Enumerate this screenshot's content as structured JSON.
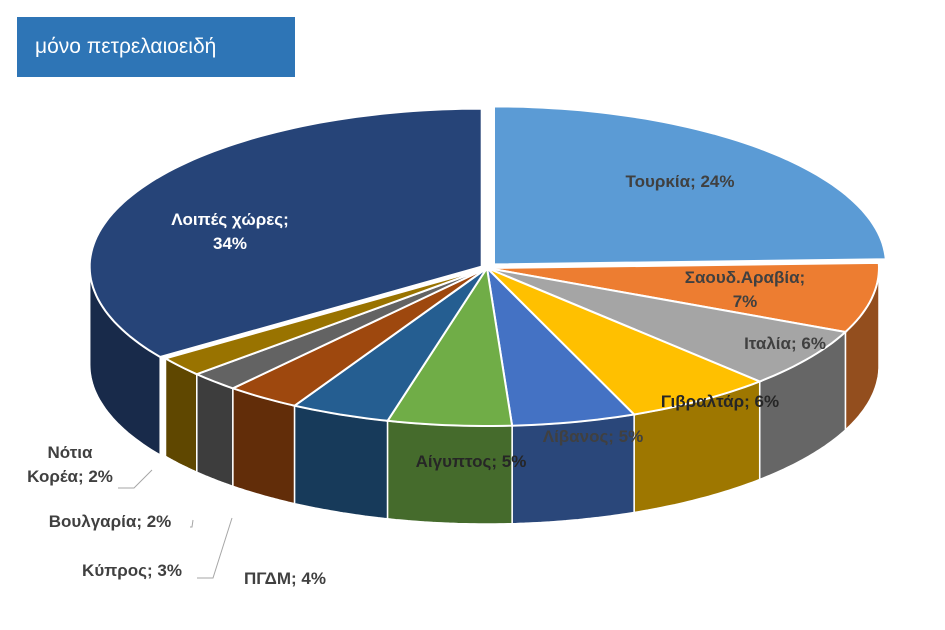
{
  "title": "μόνο πετρελαιοειδή",
  "chart_data": {
    "type": "pie",
    "style": "3d-exploded",
    "legend": "none",
    "slices": [
      {
        "name": "Τουρκία",
        "value": 24,
        "label_lines": [
          "Τουρκία; 24%"
        ],
        "color": "#5b9bd5"
      },
      {
        "name": "Σαουδ.Αραβία",
        "value": 7,
        "label_lines": [
          "Σαουδ.Αραβία;",
          "7%"
        ],
        "color": "#ed7d31"
      },
      {
        "name": "Ιταλία",
        "value": 6,
        "label_lines": [
          "Ιταλία; 6%"
        ],
        "color": "#a5a5a5"
      },
      {
        "name": "Γιβραλτάρ",
        "value": 6,
        "label_lines": [
          "Γιβραλτάρ; 6%"
        ],
        "color": "#ffc000"
      },
      {
        "name": "Λίβανος",
        "value": 5,
        "label_lines": [
          "Λίβανος; 5%"
        ],
        "color": "#4472c4"
      },
      {
        "name": "Αίγυπτος",
        "value": 5,
        "label_lines": [
          "Αίγυπτος; 5%"
        ],
        "color": "#70ad47"
      },
      {
        "name": "ΠΓΔΜ",
        "value": 4,
        "label_lines": [
          "ΠΓΔΜ; 4%"
        ],
        "color": "#255e91"
      },
      {
        "name": "Κύπρος",
        "value": 3,
        "label_lines": [
          "Κύπρος; 3%"
        ],
        "color": "#9e480e"
      },
      {
        "name": "Βουλγαρία",
        "value": 2,
        "label_lines": [
          "Βουλγαρία; 2%"
        ],
        "color": "#636363"
      },
      {
        "name": "Νότια Κορέα",
        "value": 2,
        "label_lines": [
          "Νότια",
          "Κορέα; 2%"
        ],
        "color": "#997300"
      },
      {
        "name": "Λοιπές χώρες",
        "value": 34,
        "label_lines": [
          "Λοιπές χώρες;",
          "34%"
        ],
        "color": "#264478"
      }
    ]
  }
}
